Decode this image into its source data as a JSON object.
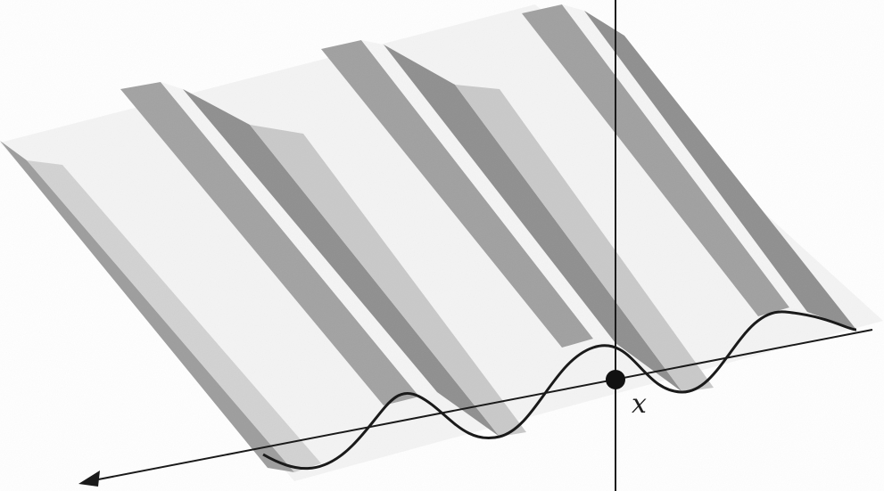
{
  "figure": {
    "type": "3d-surface-sketch",
    "description_shape": "sinusoidal ridges extended along a receding axis",
    "origin_label": "x"
  },
  "colors": {
    "background": "#ffffff",
    "ridge_dark": "#8e8e8e",
    "ridge_mid": "#b5b5b5",
    "ridge_light": "#dcdcdc",
    "ridge_highlight": "#f6f6f6",
    "line": "#1a1a1a",
    "origin_dot": "#111111"
  }
}
